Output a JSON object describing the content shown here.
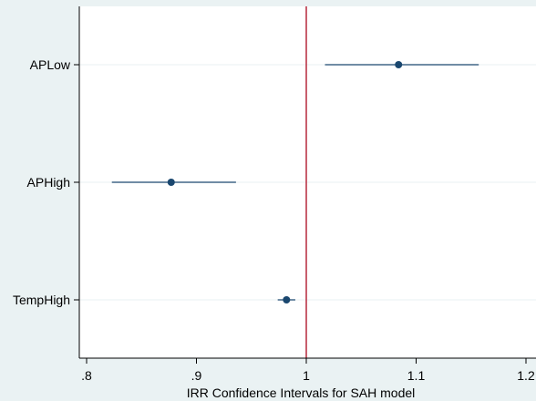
{
  "chart_data": {
    "type": "scatter",
    "subtype": "coefficient-plot",
    "title": "",
    "xlabel": "IRR Confidence Intervals for SAH model",
    "ylabel": "",
    "xlim": [
      0.8,
      1.2
    ],
    "xticks": [
      0.8,
      0.9,
      1.0,
      1.1,
      1.2
    ],
    "xtick_labels": [
      ".8",
      ".9",
      "1",
      "1.1",
      "1.2"
    ],
    "categories": [
      "APLow",
      "APHigh",
      "TempHigh"
    ],
    "series": [
      {
        "estimates": [
          1.084,
          0.877,
          0.982
        ],
        "ci_low": [
          1.017,
          0.823,
          0.974
        ],
        "ci_high": [
          1.157,
          0.936,
          0.99
        ]
      }
    ],
    "reference_line_x": 1.0,
    "grid": "horizontal",
    "legend": "none"
  },
  "colors": {
    "background": "#eaf2f3",
    "plot_area": "#ffffff",
    "marker": "#1a476f",
    "reference_line": "#b5283c",
    "grid": "#eaf2f3",
    "axis": "#000000"
  }
}
